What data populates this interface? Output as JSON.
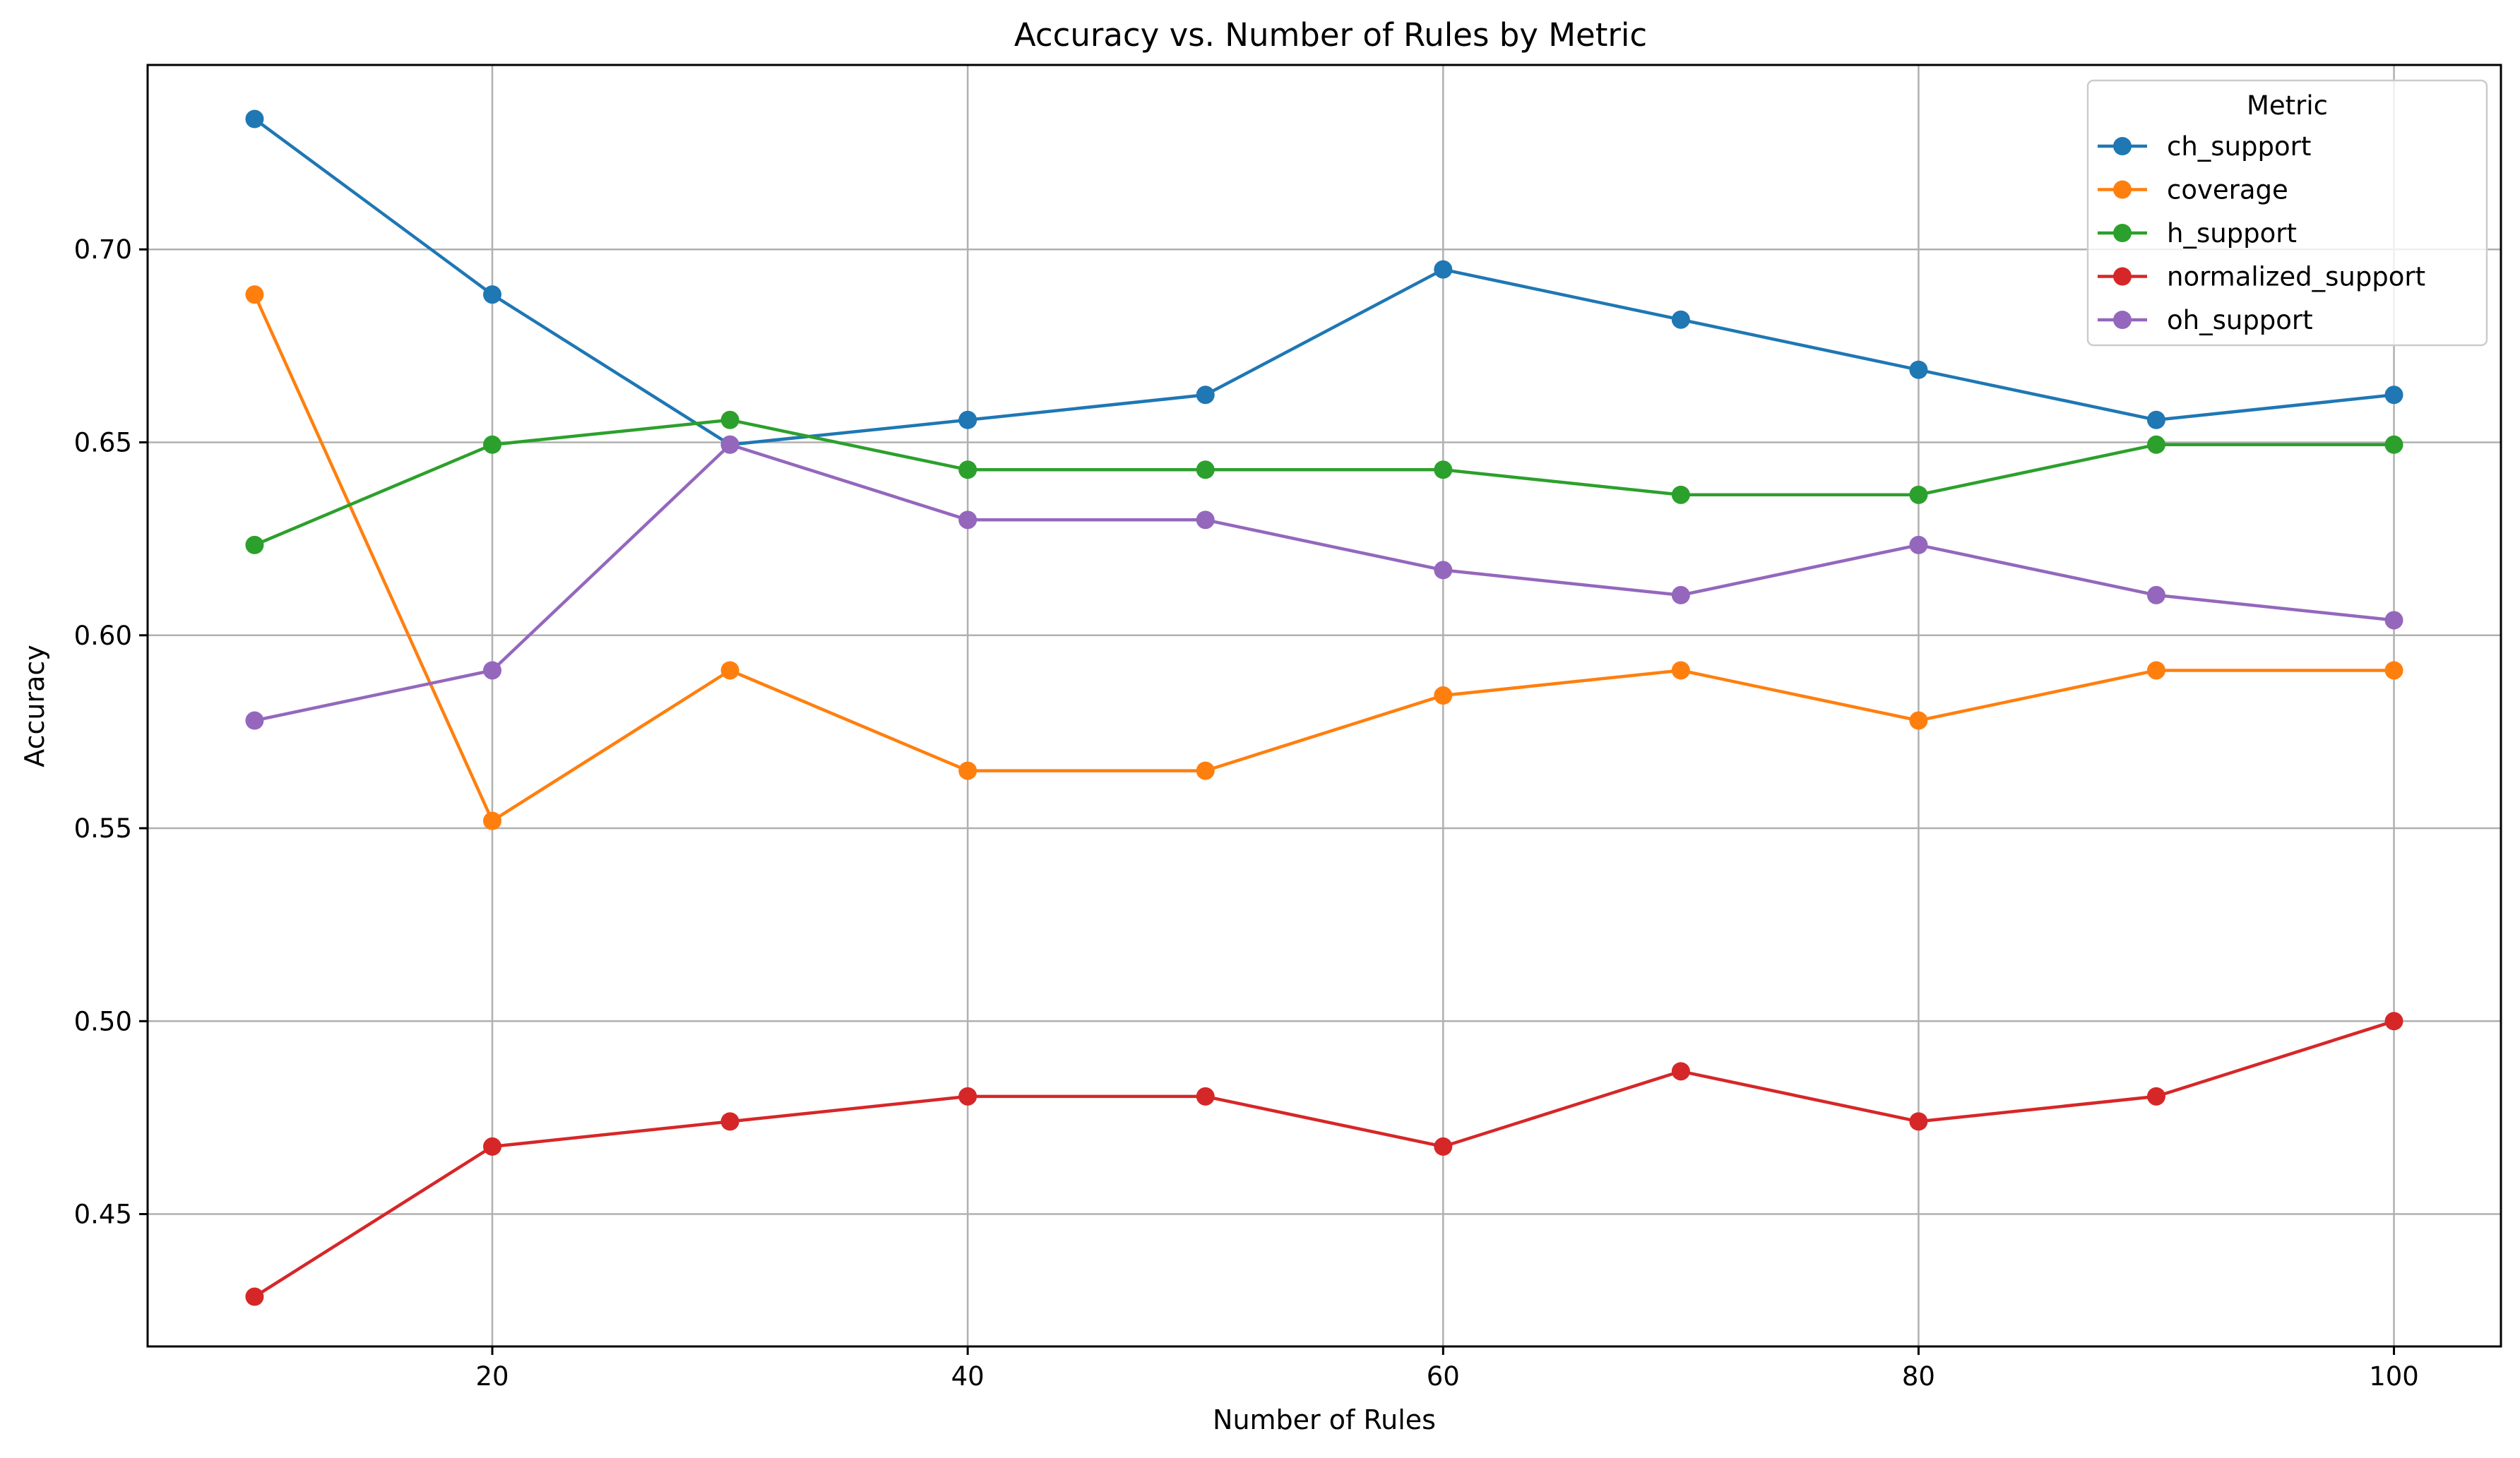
{
  "chart_data": {
    "type": "line",
    "title": "Accuracy vs. Number of Rules by Metric",
    "xlabel": "Number of Rules",
    "ylabel": "Accuracy",
    "x": [
      10,
      20,
      30,
      40,
      50,
      60,
      70,
      80,
      90,
      100
    ],
    "xlim": [
      5.5,
      104.5
    ],
    "ylim": [
      0.4157,
      0.7478
    ],
    "xticks": [
      20,
      40,
      60,
      80,
      100
    ],
    "xtick_labels": [
      "20",
      "40",
      "60",
      "80",
      "100"
    ],
    "yticks": [
      0.45,
      0.5,
      0.55,
      0.6,
      0.65,
      0.7
    ],
    "ytick_labels": [
      "0.45",
      "0.50",
      "0.55",
      "0.60",
      "0.65",
      "0.70"
    ],
    "grid": true,
    "legend": {
      "title": "Metric",
      "placement": "top-right"
    },
    "series": [
      {
        "name": "ch_support",
        "color": "#1f77b4",
        "values": [
          0.7338,
          0.6883,
          0.6494,
          0.6558,
          0.6623,
          0.6948,
          0.6818,
          0.6688,
          0.6558,
          0.6623
        ]
      },
      {
        "name": "coverage",
        "color": "#ff7f0e",
        "values": [
          0.6883,
          0.5519,
          0.5909,
          0.5649,
          0.5649,
          0.5844,
          0.5909,
          0.5779,
          0.5909,
          0.5909
        ]
      },
      {
        "name": "h_support",
        "color": "#2ca02c",
        "values": [
          0.6234,
          0.6494,
          0.6558,
          0.6429,
          0.6429,
          0.6429,
          0.6364,
          0.6364,
          0.6494,
          0.6494
        ]
      },
      {
        "name": "normalized_support",
        "color": "#d62728",
        "values": [
          0.4286,
          0.4675,
          0.474,
          0.4805,
          0.4805,
          0.4675,
          0.487,
          0.474,
          0.4805,
          0.5
        ]
      },
      {
        "name": "oh_support",
        "color": "#9467bd",
        "values": [
          0.5779,
          0.5909,
          0.6494,
          0.6299,
          0.6299,
          0.6169,
          0.6104,
          0.6234,
          0.6104,
          0.6039
        ]
      }
    ]
  }
}
